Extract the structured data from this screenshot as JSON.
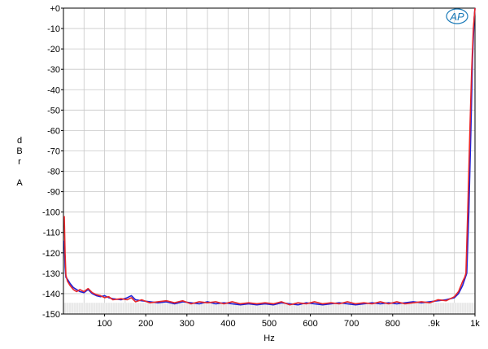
{
  "chart_data": {
    "type": "line",
    "title": "",
    "xlabel": "Hz",
    "ylabel_lines": [
      "d",
      "B",
      "r",
      "",
      "A"
    ],
    "xlim": [
      0,
      1000
    ],
    "ylim": [
      -150,
      0
    ],
    "grid": true,
    "legend": "none",
    "x_ticks": [
      {
        "value": 100,
        "label": "100"
      },
      {
        "value": 200,
        "label": "200"
      },
      {
        "value": 300,
        "label": "300"
      },
      {
        "value": 400,
        "label": "400"
      },
      {
        "value": 500,
        "label": "500"
      },
      {
        "value": 600,
        "label": "600"
      },
      {
        "value": 700,
        "label": "700"
      },
      {
        "value": 800,
        "label": "800"
      },
      {
        "value": 900,
        "label": ".9k"
      },
      {
        "value": 1000,
        "label": "1k"
      }
    ],
    "y_ticks": [
      {
        "value": 0,
        "label": "+0"
      },
      {
        "value": -10,
        "label": "-10"
      },
      {
        "value": -20,
        "label": "-20"
      },
      {
        "value": -30,
        "label": "-30"
      },
      {
        "value": -40,
        "label": "-40"
      },
      {
        "value": -50,
        "label": "-50"
      },
      {
        "value": -60,
        "label": "-60"
      },
      {
        "value": -70,
        "label": "-70"
      },
      {
        "value": -80,
        "label": "-80"
      },
      {
        "value": -90,
        "label": "-90"
      },
      {
        "value": -100,
        "label": "-100"
      },
      {
        "value": -110,
        "label": "-110"
      },
      {
        "value": -120,
        "label": "-120"
      },
      {
        "value": -130,
        "label": "-130"
      },
      {
        "value": -140,
        "label": "-140"
      },
      {
        "value": -150,
        "label": "-150"
      }
    ],
    "series": [
      {
        "color": "#1f1fd6",
        "points": [
          [
            2,
            -114
          ],
          [
            4,
            -127
          ],
          [
            6,
            -132
          ],
          [
            10,
            -133
          ],
          [
            16,
            -135
          ],
          [
            24,
            -137
          ],
          [
            32,
            -138
          ],
          [
            40,
            -139
          ],
          [
            50,
            -139.5
          ],
          [
            60,
            -138
          ],
          [
            70,
            -140
          ],
          [
            80,
            -141
          ],
          [
            90,
            -141.5
          ],
          [
            100,
            -141
          ],
          [
            110,
            -142
          ],
          [
            120,
            -142.5
          ],
          [
            140,
            -143
          ],
          [
            155,
            -142
          ],
          [
            165,
            -141
          ],
          [
            175,
            -143
          ],
          [
            190,
            -143.5
          ],
          [
            210,
            -144
          ],
          [
            230,
            -144.5
          ],
          [
            250,
            -144
          ],
          [
            270,
            -145
          ],
          [
            290,
            -144
          ],
          [
            310,
            -144.5
          ],
          [
            330,
            -145
          ],
          [
            350,
            -144
          ],
          [
            370,
            -145
          ],
          [
            390,
            -144.5
          ],
          [
            410,
            -145
          ],
          [
            430,
            -145.5
          ],
          [
            450,
            -145
          ],
          [
            470,
            -145.5
          ],
          [
            490,
            -145
          ],
          [
            510,
            -145.5
          ],
          [
            530,
            -144.5
          ],
          [
            550,
            -145
          ],
          [
            570,
            -145.5
          ],
          [
            590,
            -144.5
          ],
          [
            610,
            -145
          ],
          [
            630,
            -145.5
          ],
          [
            650,
            -145
          ],
          [
            670,
            -144.5
          ],
          [
            690,
            -145
          ],
          [
            710,
            -145.5
          ],
          [
            730,
            -145
          ],
          [
            750,
            -144.5
          ],
          [
            770,
            -145
          ],
          [
            790,
            -144.5
          ],
          [
            810,
            -145
          ],
          [
            830,
            -144.5
          ],
          [
            850,
            -144
          ],
          [
            870,
            -144.5
          ],
          [
            890,
            -144
          ],
          [
            910,
            -143.5
          ],
          [
            930,
            -143
          ],
          [
            950,
            -142
          ],
          [
            960,
            -140
          ],
          [
            970,
            -136
          ],
          [
            975,
            -133
          ],
          [
            980,
            -130
          ],
          [
            985,
            -100
          ],
          [
            990,
            -60
          ],
          [
            994,
            -25
          ],
          [
            998,
            -5
          ],
          [
            1000,
            0
          ]
        ]
      },
      {
        "color": "#e8282b",
        "points": [
          [
            2,
            -102
          ],
          [
            4,
            -120
          ],
          [
            6,
            -131
          ],
          [
            10,
            -134
          ],
          [
            16,
            -136
          ],
          [
            24,
            -138
          ],
          [
            32,
            -139
          ],
          [
            40,
            -138
          ],
          [
            50,
            -139
          ],
          [
            60,
            -137.5
          ],
          [
            70,
            -139.5
          ],
          [
            80,
            -140.5
          ],
          [
            90,
            -141
          ],
          [
            100,
            -142
          ],
          [
            110,
            -141.5
          ],
          [
            120,
            -143
          ],
          [
            140,
            -142.5
          ],
          [
            155,
            -143
          ],
          [
            165,
            -142
          ],
          [
            175,
            -144
          ],
          [
            190,
            -143
          ],
          [
            210,
            -144.5
          ],
          [
            230,
            -144
          ],
          [
            250,
            -143.5
          ],
          [
            270,
            -144.5
          ],
          [
            290,
            -143.5
          ],
          [
            310,
            -145
          ],
          [
            330,
            -144
          ],
          [
            350,
            -144.5
          ],
          [
            370,
            -144
          ],
          [
            390,
            -145
          ],
          [
            410,
            -144
          ],
          [
            430,
            -145
          ],
          [
            450,
            -144.5
          ],
          [
            470,
            -145
          ],
          [
            490,
            -144.5
          ],
          [
            510,
            -145
          ],
          [
            530,
            -144
          ],
          [
            550,
            -145.5
          ],
          [
            570,
            -144.5
          ],
          [
            590,
            -145
          ],
          [
            610,
            -144
          ],
          [
            630,
            -145
          ],
          [
            650,
            -144.5
          ],
          [
            670,
            -145
          ],
          [
            690,
            -144
          ],
          [
            710,
            -145
          ],
          [
            730,
            -144.5
          ],
          [
            750,
            -145
          ],
          [
            770,
            -144
          ],
          [
            790,
            -145
          ],
          [
            810,
            -144
          ],
          [
            830,
            -145
          ],
          [
            850,
            -144.5
          ],
          [
            870,
            -144
          ],
          [
            890,
            -144.5
          ],
          [
            910,
            -143
          ],
          [
            930,
            -143.5
          ],
          [
            950,
            -141.5
          ],
          [
            960,
            -139
          ],
          [
            970,
            -134
          ],
          [
            975,
            -132
          ],
          [
            978,
            -130
          ],
          [
            983,
            -95
          ],
          [
            988,
            -57
          ],
          [
            992,
            -30
          ],
          [
            996,
            -10
          ],
          [
            1000,
            0
          ]
        ]
      }
    ]
  },
  "logo": {
    "text": "AP",
    "color": "#1a7ab8"
  }
}
